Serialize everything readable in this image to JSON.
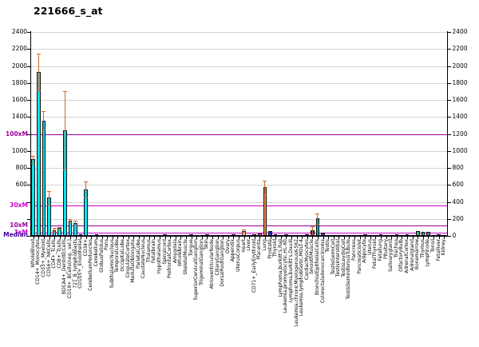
{
  "title": "221666_s_at",
  "chart_data": {
    "type": "bar",
    "title": "221666_s_at",
    "xlabel": "",
    "ylabel": "",
    "ylim": [
      0,
      2400
    ],
    "y_tick_step": 200,
    "grid": true,
    "legend": "none",
    "background": "#ffffff",
    "error_bar_color": "#c96a2e",
    "y_ticks_right": [
      0,
      200,
      400,
      600,
      800,
      1000,
      1200,
      1400,
      1600,
      1800,
      2000,
      2200,
      2400
    ],
    "y_ticks_left_labeled": [
      600,
      800,
      1000,
      1400,
      1600,
      1800,
      2000,
      2200,
      2400
    ],
    "reference_lines": [
      {
        "label": "100xM",
        "value": 1200,
        "color": "#990099"
      },
      {
        "label": "30xM",
        "value": 360,
        "color": "#cc00cc"
      },
      {
        "label": "10xM",
        "value": 120,
        "color": "#990099"
      },
      {
        "label": "3xM",
        "value": 36,
        "color": "#cc00cc"
      },
      {
        "label": "Median",
        "value": 12,
        "color": "#440099"
      }
    ],
    "categories": [
      "WholeBlood",
      "CD14+_Monocytes",
      "CD33+_Myeloid",
      "CD56+_NKCells",
      "CD4+_Tcells",
      "CD8+_Tcells",
      "BDCA4+_DentriticCells",
      "CD19+_BCells(neg._sel.)",
      "721_B_lymphoblasts",
      "CD105+_Endothelial",
      "CD34+",
      "CerebellumPeduncles",
      "Cerebellum",
      "GlobusPalidus",
      "Pons",
      "SubthalamicNucleus",
      "TemporalLobe",
      "OccipitalLobe",
      "CingulateCortex",
      "MedullaOblongata",
      "ParietalLobe",
      "CaudateNucleus",
      "Thalamus",
      "Fetalbrain",
      "Hypothalamus",
      "Spinalcord",
      "PrefrontalCortex",
      "Amygdala",
      "Wholebrain",
      "SkeletalMuscle",
      "Tongue",
      "SuperiorCervicalGanglion",
      "TrigeminalGanglion",
      "Skin",
      "AtrioventricularNode",
      "CiliaryGanglion",
      "DorsalRootGanglion",
      "Ovary",
      "Appendix",
      "UterusCorpus",
      "Heart",
      "Liver",
      "CD71+_EarlyErythroid",
      "Placenta",
      "Lung",
      "Prostate",
      "Thyroid",
      "Lymphoma,burkitt's,Raji",
      "Leukemia,promyelocytic,HL-60",
      "Lymphoma,burkitt's,Daudi",
      "Leukemia,chronicMyelogenousK-562",
      "Leukemia,lymphoblastic,MOLT-4",
      "CardiacMyocytes",
      "SmoothMuscle",
      "BronchialEpithelialCells",
      "Colorectaladenocarcinoma",
      "Testis",
      "TestisGermCell",
      "TestisInterstitial",
      "TestisLeydigCell",
      "TestisSeminiferousTubule",
      "Pancreas",
      "PancreaticIslet",
      "Adipocyte",
      "Uterus",
      "FetalThyroid",
      "Fetallung",
      "Pituitary",
      "Salivarygland",
      "Trachea",
      "OlfactoryBulb",
      "AdrenalCortex",
      "Adrenalgland",
      "Bonemarrow",
      "Thymus",
      "Lymphnode",
      "Tonsil",
      "Fetalliver",
      "Kidney"
    ],
    "values": [
      900,
      1930,
      1360,
      450,
      70,
      90,
      1240,
      178,
      155,
      22,
      545,
      12,
      15,
      10,
      12,
      10,
      8,
      10,
      9,
      12,
      9,
      10,
      11,
      13,
      10,
      16,
      9,
      10,
      9,
      10,
      18,
      14,
      13,
      16,
      12,
      14,
      13,
      10,
      18,
      12,
      60,
      12,
      18,
      28,
      570,
      55,
      20,
      12,
      15,
      10,
      12,
      10,
      20,
      65,
      205,
      40,
      12,
      10,
      14,
      12,
      10,
      14,
      12,
      16,
      10,
      14,
      18,
      10,
      9,
      20,
      12,
      16,
      12,
      52,
      50,
      47,
      14,
      16,
      12
    ],
    "errors_hi": [
      945,
      2150,
      1465,
      530,
      90,
      107,
      1700,
      200,
      175,
      null,
      640,
      null,
      null,
      null,
      null,
      null,
      null,
      null,
      null,
      null,
      null,
      null,
      null,
      null,
      null,
      null,
      null,
      null,
      null,
      null,
      null,
      null,
      null,
      null,
      null,
      null,
      null,
      null,
      null,
      null,
      80,
      null,
      null,
      null,
      650,
      null,
      null,
      null,
      null,
      null,
      null,
      null,
      null,
      112,
      268,
      null,
      null,
      null,
      null,
      null,
      null,
      null,
      null,
      null,
      null,
      null,
      null,
      null,
      null,
      null,
      null,
      null,
      null,
      null,
      null,
      null,
      null,
      null,
      null
    ],
    "colors": [
      "#00e6f2",
      "#00e6f2",
      "#00e6f2",
      "#00e6f2",
      "#00e6f2",
      "#00e6f2",
      "#00e6f2",
      "#00e6f2",
      "#00e6f2",
      "#00e6f2",
      "#00e6f2",
      "#dd22cc",
      "#dd22cc",
      "#dd22cc",
      "#dd22cc",
      "#dd22cc",
      "#dd22cc",
      "#dd22cc",
      "#dd22cc",
      "#dd22cc",
      "#dd22cc",
      "#dd22cc",
      "#dd22cc",
      "#dd22cc",
      "#dd22cc",
      "#dd22cc",
      "#dd22cc",
      "#dd22cc",
      "#dd22cc",
      "#bb2255",
      "#cc4488",
      "#ee66aa",
      "#ee66aa",
      "#cc9966",
      "#ee66aa",
      "#ee66aa",
      "#ee66aa",
      "#ff88bb",
      "#dd6699",
      "#ee77aa",
      "#ffcc99",
      "#aa7744",
      "#00e6f2",
      "#ff9955",
      "#ff8844",
      "#2233bb",
      "#88aadd",
      "#7755cc",
      "#7755cc",
      "#7755cc",
      "#7755cc",
      "#7755cc",
      "#3344aa",
      "#222e99",
      "#00a8b0",
      "#335566",
      "#8899bb",
      "#8899bb",
      "#8899bb",
      "#8899bb",
      "#8899bb",
      "#bb8833",
      "#bb8833",
      "#ddaa55",
      "#ee77aa",
      "#88aadd",
      "#ff9966",
      "#cc88cc",
      "#cc8888",
      "#ff9966",
      "#dd22cc",
      "#dd4444",
      "#dd4444",
      "#44bb66",
      "#44bb66",
      "#66778f",
      "#44bb66",
      "#aa7744",
      "#aa8866"
    ]
  }
}
